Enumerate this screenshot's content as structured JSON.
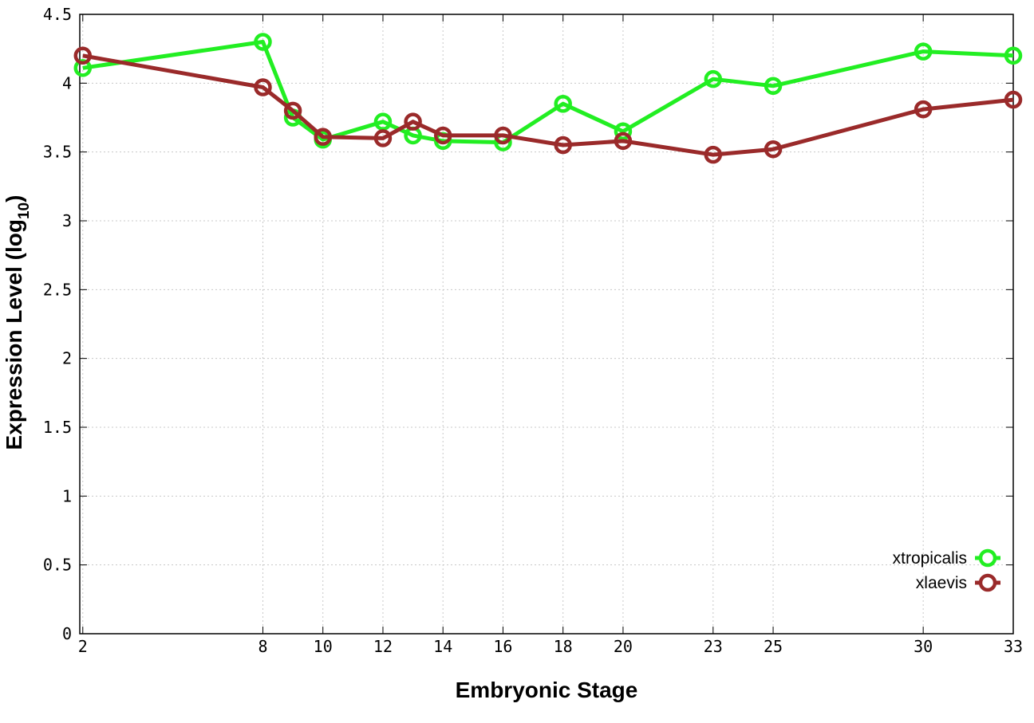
{
  "chart_data": {
    "type": "line",
    "xlabel": "Embryonic Stage",
    "ylabel": {
      "main": "Expression Level (log",
      "subscript": "10",
      "close": ")"
    },
    "x_ticks": [
      2,
      8,
      10,
      12,
      14,
      16,
      18,
      20,
      23,
      25,
      30,
      33
    ],
    "y_ticks": [
      "0",
      "0.5",
      "1",
      "1.5",
      "2",
      "2.5",
      "3",
      "3.5",
      "4",
      "4.5"
    ],
    "xlim": [
      1.9,
      33
    ],
    "ylim": [
      0,
      4.5
    ],
    "grid": true,
    "legend_position": "bottom-right",
    "series": [
      {
        "name": "xtropicalis",
        "color": "#22ee22",
        "x": [
          2,
          8,
          9,
          10,
          12,
          13,
          14,
          16,
          18,
          20,
          23,
          25,
          30,
          33
        ],
        "y": [
          4.11,
          4.3,
          3.75,
          3.59,
          3.72,
          3.62,
          3.58,
          3.57,
          3.85,
          3.65,
          4.03,
          3.98,
          4.23,
          4.2
        ]
      },
      {
        "name": "xlaevis",
        "color": "#9a2a2a",
        "x": [
          2,
          8,
          9,
          10,
          12,
          13,
          14,
          16,
          18,
          20,
          23,
          25,
          30,
          33
        ],
        "y": [
          4.2,
          3.97,
          3.8,
          3.61,
          3.6,
          3.72,
          3.62,
          3.62,
          3.55,
          3.58,
          3.48,
          3.52,
          3.81,
          3.88
        ]
      }
    ]
  }
}
